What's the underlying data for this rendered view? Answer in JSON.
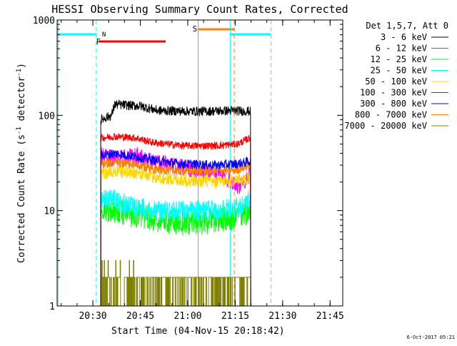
{
  "chart_data": {
    "type": "line",
    "title": "HESSI Observing Summary Count Rates, Corrected",
    "xlabel": "Start Time (04-Nov-15 20:18:42)",
    "ylabel": "Corrected Count Rate (s",
    "ylabel_sup1": "-1",
    "ylabel_mid": " detector",
    "ylabel_sup2": "-1",
    "ylabel_end": ")",
    "y_scale": "log",
    "ylim": [
      1,
      1000
    ],
    "y_ticks": [
      1,
      10,
      100,
      1000
    ],
    "y_tick_labels": [
      "1",
      "10",
      "100",
      "1000"
    ],
    "xlim_minutes_after_20_18_42": [
      0,
      90.3
    ],
    "x_ticks": [
      {
        "label": "20:30",
        "min": 11.3
      },
      {
        "label": "20:45",
        "min": 26.3
      },
      {
        "label": "21:00",
        "min": 41.3
      },
      {
        "label": "21:15",
        "min": 56.3
      },
      {
        "label": "21:30",
        "min": 71.3
      },
      {
        "label": "21:45",
        "min": 86.3
      }
    ],
    "legend_header": "Det 1,5,7, Att 0",
    "legend_placement": "right, outside plot",
    "series": [
      {
        "name": "3 - 6 keV",
        "color": "#000000",
        "start": 13.8,
        "end": 61.2,
        "points": [
          [
            13.8,
            90
          ],
          [
            17.2,
            100
          ],
          [
            18.2,
            130
          ],
          [
            26.5,
            125
          ],
          [
            32.0,
            112
          ],
          [
            45.0,
            110
          ],
          [
            55.0,
            112
          ],
          [
            61.0,
            110
          ]
        ]
      },
      {
        "name": "6 - 12 keV",
        "color": "#ff00ff",
        "start": 13.8,
        "end": 61.2,
        "points": [
          [
            13.8,
            38
          ],
          [
            18.0,
            35
          ],
          [
            25.0,
            38
          ],
          [
            30.0,
            33
          ],
          [
            40.0,
            28
          ],
          [
            50.0,
            25
          ],
          [
            58.0,
            18
          ],
          [
            61.0,
            25
          ]
        ]
      },
      {
        "name": "12 - 25 keV",
        "color": "#00ff00",
        "start": 13.8,
        "end": 61.2,
        "points": [
          [
            13.8,
            11
          ],
          [
            18.0,
            10
          ],
          [
            25.0,
            9
          ],
          [
            32.0,
            8
          ],
          [
            40.0,
            7.5
          ],
          [
            50.0,
            7.8
          ],
          [
            57.0,
            8.5
          ],
          [
            61.0,
            10
          ]
        ]
      },
      {
        "name": "25 - 50 keV",
        "color": "#00ffff",
        "start": 13.8,
        "end": 61.2,
        "points": [
          [
            13.8,
            13
          ],
          [
            18.0,
            13
          ],
          [
            25.0,
            11
          ],
          [
            32.0,
            10
          ],
          [
            40.0,
            10
          ],
          [
            50.0,
            10
          ],
          [
            57.0,
            11
          ],
          [
            61.0,
            13
          ]
        ]
      },
      {
        "name": "50 - 100 keV",
        "color": "#ffd700",
        "start": 13.8,
        "end": 61.2,
        "points": [
          [
            13.8,
            24
          ],
          [
            18.0,
            26
          ],
          [
            25.0,
            25
          ],
          [
            32.0,
            22
          ],
          [
            40.0,
            21
          ],
          [
            50.0,
            20
          ],
          [
            57.0,
            21
          ],
          [
            61.0,
            22
          ]
        ]
      },
      {
        "name": "100 - 300 keV",
        "color": "#ff0000",
        "start": 13.8,
        "end": 61.2,
        "points": [
          [
            13.8,
            58
          ],
          [
            18.0,
            60
          ],
          [
            25.0,
            58
          ],
          [
            30.0,
            52
          ],
          [
            40.0,
            48
          ],
          [
            50.0,
            48
          ],
          [
            57.0,
            50
          ],
          [
            61.0,
            58
          ]
        ]
      },
      {
        "name": "300 - 800 keV",
        "color": "#0000ff",
        "start": 13.8,
        "end": 61.2,
        "points": [
          [
            13.8,
            38
          ],
          [
            18.0,
            40
          ],
          [
            25.0,
            37
          ],
          [
            32.0,
            33
          ],
          [
            40.0,
            31
          ],
          [
            50.0,
            30
          ],
          [
            57.0,
            31
          ],
          [
            61.0,
            33
          ]
        ]
      },
      {
        "name": "800 - 7000 keV",
        "color": "#ff8000",
        "start": 13.8,
        "end": 61.2,
        "points": [
          [
            13.8,
            31
          ],
          [
            18.0,
            32
          ],
          [
            25.0,
            30
          ],
          [
            32.0,
            27
          ],
          [
            40.0,
            26
          ],
          [
            50.0,
            26
          ],
          [
            57.0,
            27
          ],
          [
            61.0,
            30
          ]
        ]
      },
      {
        "name": "7000 - 20000 keV",
        "color": "#808000",
        "start": 13.8,
        "end": 61.2,
        "points": [
          [
            13.8,
            1.5
          ],
          [
            61.2,
            1.5
          ]
        ]
      }
    ],
    "annotations": [
      {
        "label": "N",
        "color": "#00ffff"
      },
      {
        "label": "F",
        "color": "#ff0000"
      },
      {
        "label": "S",
        "color": "#ff8000"
      }
    ],
    "footer": "6-Oct-2017 05:21"
  }
}
